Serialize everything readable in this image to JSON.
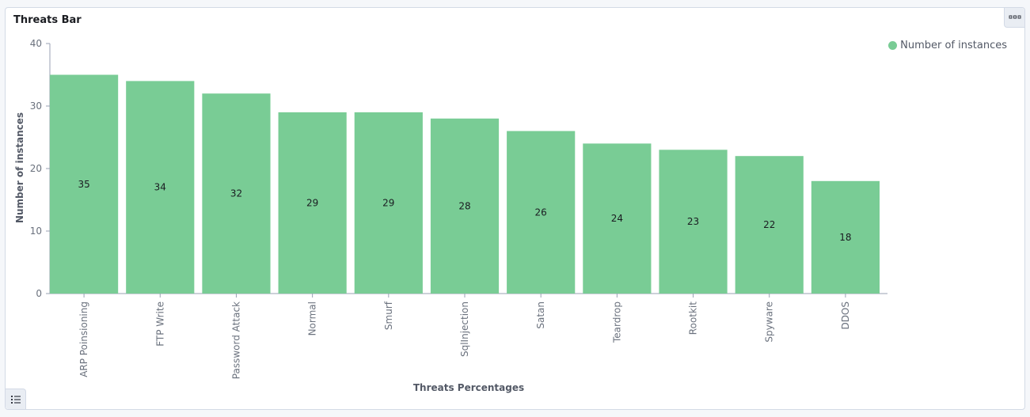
{
  "panel": {
    "title": "Threats Bar",
    "options_icon": "ellipsis-icon",
    "legend_toggle_icon": "list-icon"
  },
  "colors": {
    "bar": "#79cc95",
    "axis": "#98a2b3",
    "label": "#1a1c21",
    "tick_text": "#6a717d"
  },
  "chart_data": {
    "type": "bar",
    "title": "Threats Bar",
    "xlabel": "Threats Percentages",
    "ylabel": "Number of instances",
    "categories": [
      "ARP Poinsioning",
      "FTP Write",
      "Password Attack",
      "Normal",
      "Smurf",
      "SqlInjection",
      "Satan",
      "Teardrop",
      "Rootkit",
      "Spyware",
      "DDOS"
    ],
    "series": [
      {
        "name": "Number of instances",
        "values": [
          35,
          34,
          32,
          29,
          29,
          28,
          26,
          24,
          23,
          22,
          18
        ]
      }
    ],
    "ylim": [
      0,
      40
    ],
    "yticks": [
      0,
      10,
      20,
      30,
      40
    ],
    "grid": false,
    "legend_position": "top-right",
    "data_labels": true
  }
}
